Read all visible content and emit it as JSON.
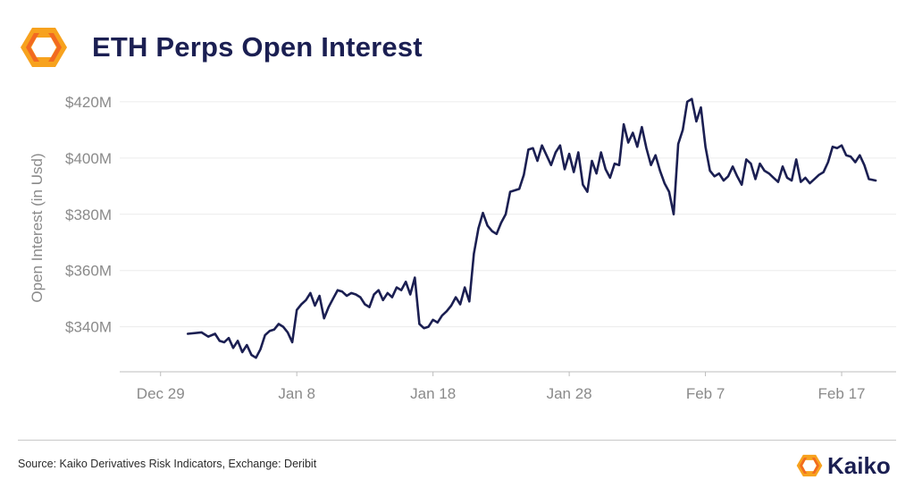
{
  "header": {
    "title": "ETH Perps Open Interest",
    "logo_icon": "kaiko-hexagon-logo-icon"
  },
  "colors": {
    "title": "#1b1f52",
    "line": "#1b1f52",
    "axis_text": "#8a8a8a",
    "grid": "#ececec",
    "logo_orange": "#f7931e",
    "logo_orange_dark": "#f26a21"
  },
  "chart_data": {
    "type": "line",
    "title": "ETH Perps Open Interest",
    "xlabel": "",
    "ylabel": "Open Interest (in Usd)",
    "y_unit": "USD (millions)",
    "x_start": "2024-12-29",
    "x_ticks": [
      "Dec 29",
      "Jan 8",
      "Jan 18",
      "Jan 28",
      "Feb 7",
      "Feb 17"
    ],
    "y_ticks": [
      "$340M",
      "$360M",
      "$380M",
      "$400M",
      "$420M"
    ],
    "xlim": [
      "2024-12-26",
      "2025-02-21"
    ],
    "ylim": [
      324,
      426
    ],
    "grid": true,
    "legend": "none",
    "series": [
      {
        "name": "",
        "x": [
          "2024-12-31",
          "2025-01-01",
          "2025-01-01",
          "2025-01-02",
          "2025-01-02",
          "2025-01-02",
          "2025-01-03",
          "2025-01-03",
          "2025-01-03",
          "2025-01-04",
          "2025-01-04",
          "2025-01-04",
          "2025-01-05",
          "2025-01-05",
          "2025-01-05",
          "2025-01-06",
          "2025-01-06",
          "2025-01-06",
          "2025-01-07",
          "2025-01-07",
          "2025-01-07",
          "2025-01-08",
          "2025-01-08",
          "2025-01-08",
          "2025-01-09",
          "2025-01-09",
          "2025-01-09",
          "2025-01-10",
          "2025-01-10",
          "2025-01-10",
          "2025-01-11",
          "2025-01-11",
          "2025-01-11",
          "2025-01-12",
          "2025-01-12",
          "2025-01-12",
          "2025-01-13",
          "2025-01-13",
          "2025-01-13",
          "2025-01-14",
          "2025-01-14",
          "2025-01-14",
          "2025-01-15",
          "2025-01-15",
          "2025-01-15",
          "2025-01-16",
          "2025-01-16",
          "2025-01-16",
          "2025-01-17",
          "2025-01-17",
          "2025-01-17",
          "2025-01-18",
          "2025-01-18",
          "2025-01-18",
          "2025-01-19",
          "2025-01-19",
          "2025-01-19",
          "2025-01-20",
          "2025-01-20",
          "2025-01-20",
          "2025-01-21",
          "2025-01-21",
          "2025-01-21",
          "2025-01-22",
          "2025-01-22",
          "2025-01-22",
          "2025-01-23",
          "2025-01-23",
          "2025-01-23",
          "2025-01-24",
          "2025-01-24",
          "2025-01-24",
          "2025-01-25",
          "2025-01-25",
          "2025-01-25",
          "2025-01-26",
          "2025-01-26",
          "2025-01-26",
          "2025-01-27",
          "2025-01-27",
          "2025-01-27",
          "2025-01-28",
          "2025-01-28",
          "2025-01-28",
          "2025-01-29",
          "2025-01-29",
          "2025-01-29",
          "2025-01-30",
          "2025-01-30",
          "2025-01-30",
          "2025-01-31",
          "2025-01-31",
          "2025-01-31",
          "2025-02-01",
          "2025-02-01",
          "2025-02-01",
          "2025-02-02",
          "2025-02-02",
          "2025-02-02",
          "2025-02-03",
          "2025-02-03",
          "2025-02-03",
          "2025-02-04",
          "2025-02-04",
          "2025-02-04",
          "2025-02-05",
          "2025-02-05",
          "2025-02-05",
          "2025-02-06",
          "2025-02-06",
          "2025-02-06",
          "2025-02-07",
          "2025-02-07",
          "2025-02-07",
          "2025-02-08",
          "2025-02-08",
          "2025-02-08",
          "2025-02-09",
          "2025-02-09",
          "2025-02-09",
          "2025-02-10",
          "2025-02-10",
          "2025-02-10",
          "2025-02-11",
          "2025-02-11",
          "2025-02-11",
          "2025-02-12",
          "2025-02-12",
          "2025-02-12",
          "2025-02-13",
          "2025-02-13",
          "2025-02-13",
          "2025-02-14",
          "2025-02-14",
          "2025-02-14",
          "2025-02-15",
          "2025-02-15",
          "2025-02-15",
          "2025-02-16",
          "2025-02-16",
          "2025-02-16",
          "2025-02-17",
          "2025-02-17",
          "2025-02-17",
          "2025-02-18",
          "2025-02-18",
          "2025-02-18",
          "2025-02-19",
          "2025-02-19"
        ],
        "values": [
          337.5,
          338.0,
          336.5,
          337.5,
          335.0,
          334.5,
          336.0,
          332.5,
          335.0,
          331.0,
          333.5,
          330.0,
          329.0,
          332.0,
          337.0,
          338.5,
          339.0,
          341.0,
          340.0,
          338.0,
          334.5,
          346.0,
          348.0,
          349.5,
          352.0,
          347.5,
          351.0,
          343.0,
          347.0,
          350.0,
          353.0,
          352.5,
          351.0,
          352.0,
          351.5,
          350.5,
          348.0,
          347.0,
          351.5,
          353.0,
          349.5,
          352.0,
          350.5,
          354.0,
          353.0,
          356.0,
          351.5,
          357.5,
          341.0,
          339.5,
          340.0,
          342.5,
          341.5,
          344.0,
          345.5,
          347.5,
          350.5,
          348.0,
          354.0,
          349.0,
          366.0,
          375.0,
          380.5,
          376.0,
          374.0,
          373.0,
          377.0,
          380.0,
          388.0,
          388.5,
          389.0,
          394.0,
          403.0,
          403.5,
          399.0,
          404.5,
          401.0,
          397.5,
          402.0,
          404.5,
          396.0,
          401.5,
          395.0,
          402.0,
          390.5,
          388.0,
          399.0,
          394.5,
          402.0,
          396.0,
          393.0,
          398.0,
          397.5,
          412.0,
          405.5,
          409.0,
          404.0,
          411.0,
          403.5,
          397.5,
          401.0,
          395.5,
          391.0,
          388.0,
          380.0,
          405.0,
          410.0,
          420.0,
          421.0,
          413.0,
          418.0,
          404.0,
          395.5,
          393.5,
          394.5,
          392.0,
          393.5,
          397.0,
          393.5,
          390.5,
          399.5,
          398.0,
          392.5,
          398.0,
          395.5,
          394.5,
          393.0,
          391.5,
          397.0,
          393.0,
          392.0,
          399.5,
          391.5,
          393.0,
          391.0,
          392.5,
          394.0,
          395.0,
          398.5,
          404.0,
          403.5,
          404.5,
          401.0,
          400.5,
          398.5,
          401.0,
          397.5,
          392.5,
          392.0
        ]
      }
    ]
  },
  "footer": {
    "source": "Source: Kaiko Derivatives Risk Indicators",
    "exchange": ", Exchange: Deribit",
    "brand_name": "Kaiko",
    "brand_icon": "kaiko-hexagon-logo-icon"
  }
}
